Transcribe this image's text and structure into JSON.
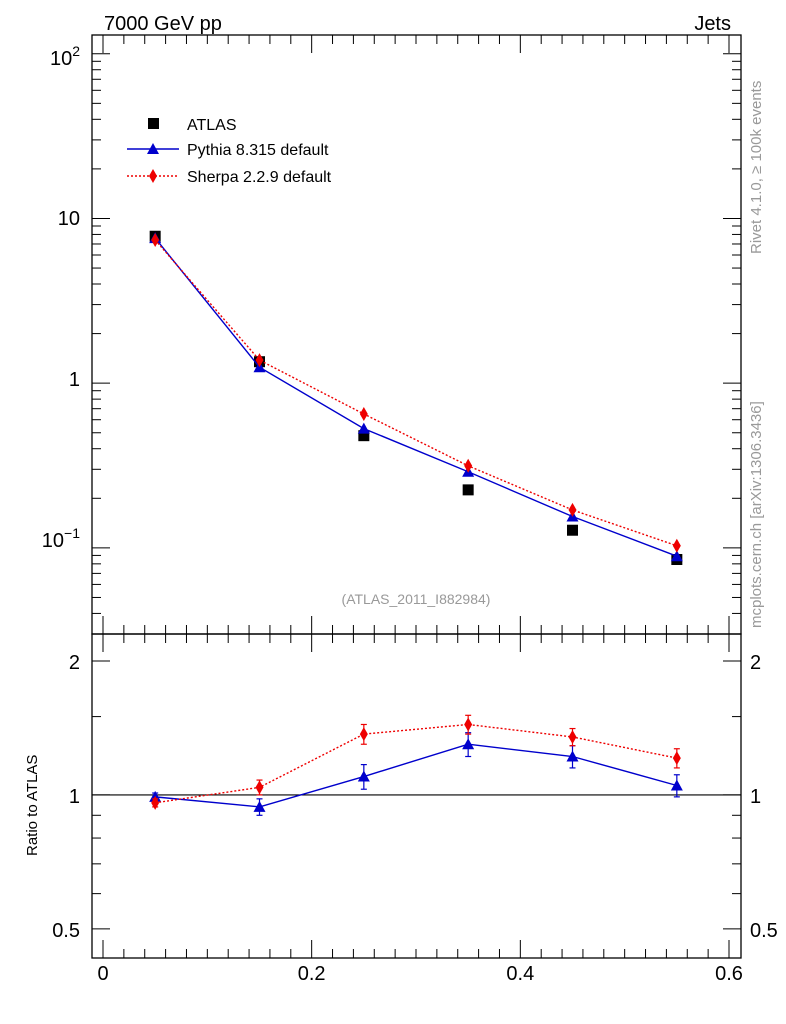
{
  "header": {
    "left": "7000 GeV pp",
    "right": "Jets"
  },
  "side_texts": {
    "rivet": "Rivet 4.1.0, ≥ 100k events",
    "mcplots": "mcplots.cern.ch [arXiv:1306.3436]"
  },
  "analysis_label": "(ATLAS_2011_I882984)",
  "legend": [
    {
      "key": "atlas",
      "label": "ATLAS"
    },
    {
      "key": "pythia",
      "label": "Pythia 8.315 default"
    },
    {
      "key": "sherpa",
      "label": "Sherpa 2.2.9 default"
    }
  ],
  "colors": {
    "atlas": "#000000",
    "pythia": "#0000cc",
    "sherpa": "#ee0000",
    "label_grey": "#999999"
  },
  "chart_data": [
    {
      "type": "line",
      "panel": "main",
      "yscale": "log",
      "xlim": [
        0,
        0.6
      ],
      "ylim": [
        0.03,
        130
      ],
      "y_tick_labels": [
        "10^-1",
        "1",
        "10",
        "10^2"
      ],
      "x": [
        0.05,
        0.15,
        0.25,
        0.35,
        0.45,
        0.55
      ],
      "series": [
        {
          "name": "ATLAS",
          "key": "atlas",
          "style": "markers",
          "values": [
            7.8,
            1.35,
            0.48,
            0.225,
            0.128,
            0.085
          ]
        },
        {
          "name": "Pythia 8.315 default",
          "key": "pythia",
          "style": "solid",
          "values": [
            7.6,
            1.25,
            0.53,
            0.29,
            0.155,
            0.089
          ]
        },
        {
          "name": "Sherpa 2.2.9 default",
          "key": "sherpa",
          "style": "dotted",
          "values": [
            7.4,
            1.38,
            0.65,
            0.315,
            0.17,
            0.103
          ]
        }
      ]
    },
    {
      "type": "line",
      "panel": "ratio",
      "yscale": "log",
      "ylabel": "Ratio to ATLAS",
      "xlim": [
        0,
        0.6
      ],
      "ylim": [
        0.43,
        2.3
      ],
      "y_ticks": [
        0.5,
        1,
        2
      ],
      "y_tick_labels": [
        "0.5",
        "1",
        "2"
      ],
      "x_ticks": [
        0,
        0.2,
        0.4,
        0.6
      ],
      "x_tick_labels": [
        "0",
        "0.2",
        "0.4",
        "0.6"
      ],
      "reference": 1,
      "x": [
        0.05,
        0.15,
        0.25,
        0.35,
        0.45,
        0.55
      ],
      "series": [
        {
          "name": "Pythia 8.315 default",
          "key": "pythia",
          "style": "solid",
          "values": [
            0.99,
            0.94,
            1.1,
            1.3,
            1.22,
            1.05
          ],
          "errors": [
            0.02,
            0.04,
            0.07,
            0.08,
            0.07,
            0.06
          ]
        },
        {
          "name": "Sherpa 2.2.9 default",
          "key": "sherpa",
          "style": "dotted",
          "values": [
            0.96,
            1.04,
            1.37,
            1.44,
            1.35,
            1.21
          ],
          "errors": [
            0.02,
            0.04,
            0.07,
            0.07,
            0.06,
            0.06
          ]
        }
      ]
    }
  ]
}
